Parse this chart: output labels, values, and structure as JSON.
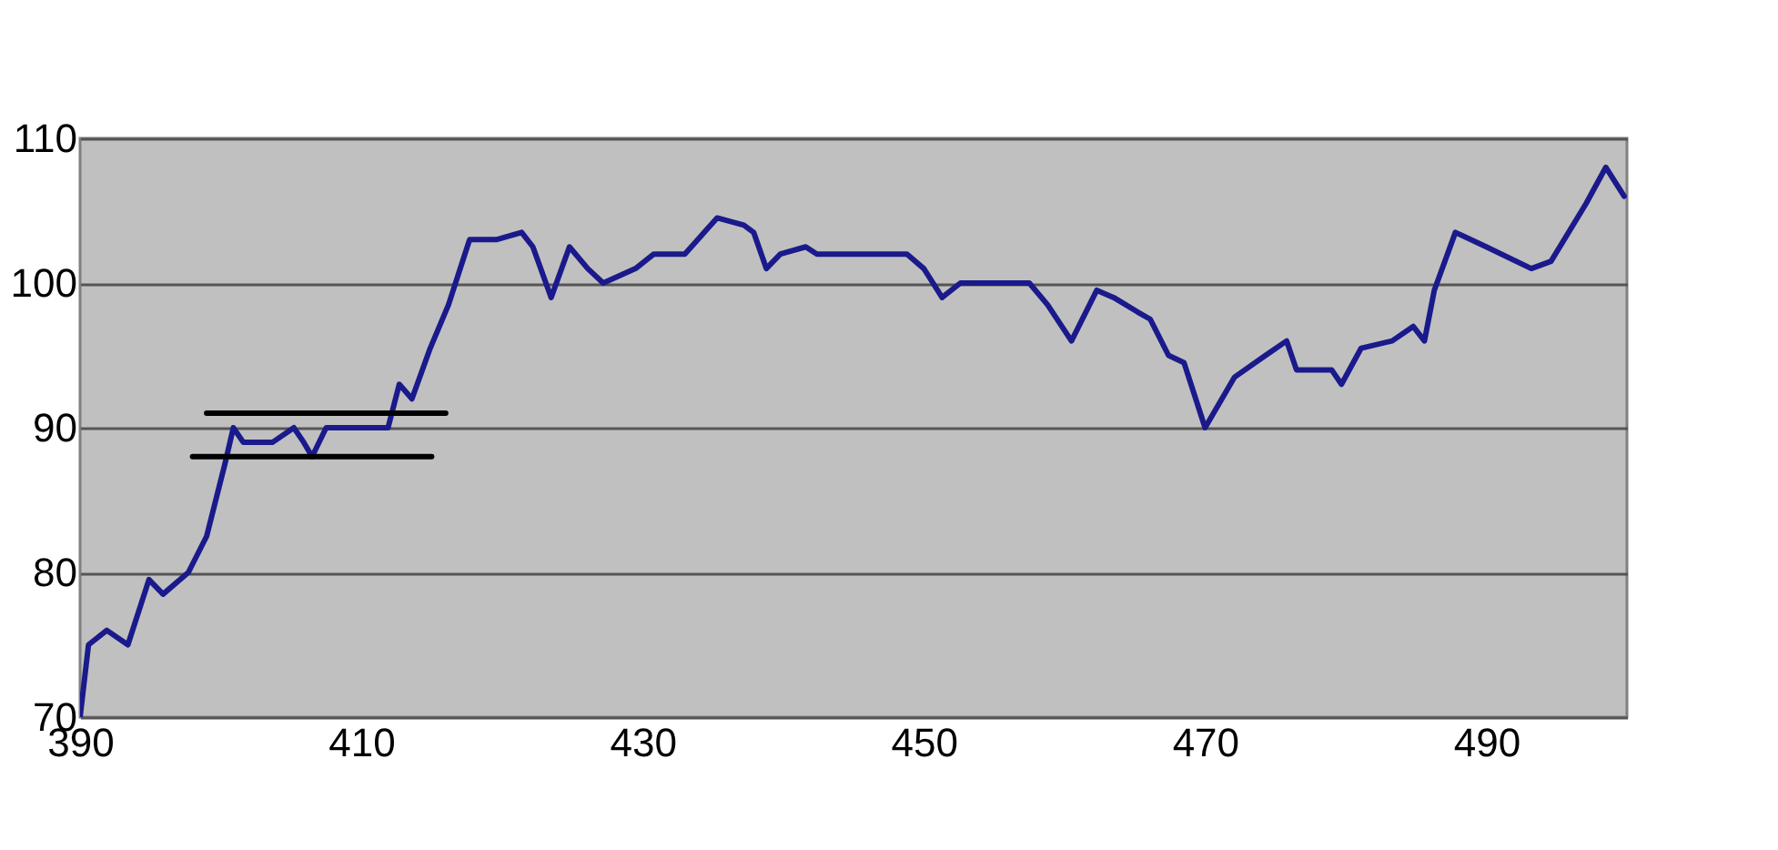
{
  "chart_data": {
    "type": "line",
    "xlim": [
      390,
      500
    ],
    "xticks": [
      390,
      410,
      430,
      450,
      470,
      490
    ],
    "ylim": [
      70,
      110
    ],
    "yticks": [
      70,
      80,
      90,
      100,
      110
    ],
    "grid": "y",
    "marker": "none",
    "line_style": "solid",
    "series": [
      {
        "color": "#1a1a8c",
        "x": [
          390,
          390.6,
          391.9,
          393.4,
          394.9,
          395.9,
          397.7,
          399,
          400.3,
          400.9,
          401.6,
          403.7,
          405.2,
          405.9,
          406.5,
          407.5,
          410.6,
          411.9,
          412.7,
          413.6,
          414.9,
          416.2,
          417.7,
          419.6,
          421.4,
          422.2,
          423.5,
          424.8,
          426.1,
          427.2,
          429.5,
          430.8,
          433,
          435.3,
          437.2,
          437.9,
          438.8,
          439.8,
          441.6,
          442.4,
          448.8,
          450,
          451.3,
          452.6,
          457.5,
          458.8,
          460.5,
          462.3,
          463.5,
          465.2,
          466.1,
          467.4,
          468.5,
          470,
          472.1,
          474.3,
          475.8,
          476.5,
          479,
          479.7,
          481.1,
          483.3,
          484.8,
          485.6,
          486.3,
          487.8,
          490,
          493.2,
          494.6,
          497.1,
          498.5,
          499.8
        ],
        "values": [
          70,
          75,
          76,
          75,
          79.5,
          78.5,
          80,
          82.5,
          87.5,
          90,
          89,
          89,
          90,
          89,
          88,
          90,
          90,
          90,
          93,
          92,
          95.5,
          98.5,
          103,
          103,
          103.5,
          102.5,
          99,
          102.5,
          101,
          100,
          101,
          102,
          102,
          104.5,
          104,
          103.5,
          101,
          102,
          102.5,
          102,
          102,
          101,
          99,
          100,
          100,
          98.5,
          96,
          99.5,
          99,
          98,
          97.5,
          95,
          94.5,
          90,
          93.5,
          95,
          96,
          94,
          94,
          93,
          95.5,
          96,
          97,
          96,
          99.5,
          103.5,
          102.5,
          101,
          101.5,
          105.5,
          108,
          106
        ]
      },
      {
        "color": "#000000",
        "type": "line",
        "x": [
          399,
          416
        ],
        "values": [
          91,
          91
        ]
      },
      {
        "color": "#000000",
        "type": "line",
        "x": [
          398,
          415
        ],
        "values": [
          88,
          88
        ]
      }
    ]
  }
}
